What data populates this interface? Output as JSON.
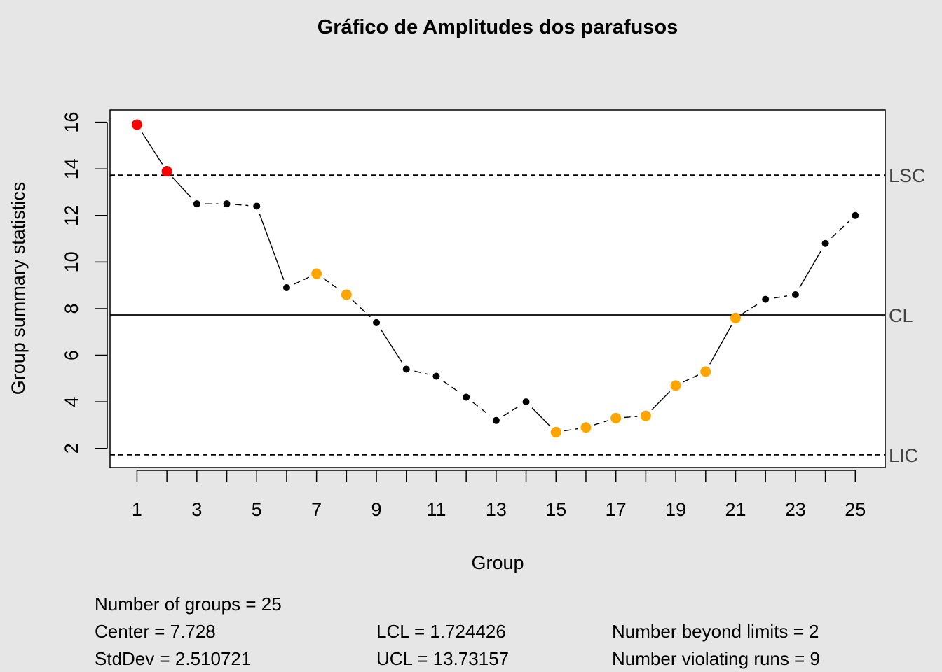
{
  "chart_data": {
    "type": "line",
    "title": "Gráfico de Amplitudes dos parafusos",
    "xlabel": "Group",
    "ylabel": "Group summary statistics",
    "x": [
      1,
      2,
      3,
      4,
      5,
      6,
      7,
      8,
      9,
      10,
      11,
      12,
      13,
      14,
      15,
      16,
      17,
      18,
      19,
      20,
      21,
      22,
      23,
      24,
      25
    ],
    "values": [
      15.9,
      13.9,
      12.5,
      12.5,
      12.4,
      8.9,
      9.5,
      8.6,
      7.4,
      5.4,
      5.1,
      4.2,
      3.2,
      4.0,
      2.7,
      2.9,
      3.3,
      3.4,
      4.7,
      5.3,
      7.6,
      8.4,
      8.6,
      10.8,
      12.0
    ],
    "point_status": [
      "beyond",
      "beyond",
      "normal",
      "normal",
      "normal",
      "normal",
      "run",
      "run",
      "normal",
      "normal",
      "normal",
      "normal",
      "normal",
      "normal",
      "run",
      "run",
      "run",
      "run",
      "run",
      "run",
      "run",
      "normal",
      "normal",
      "normal",
      "normal"
    ],
    "x_ticks": [
      1,
      3,
      5,
      7,
      9,
      11,
      13,
      15,
      17,
      19,
      21,
      23,
      25
    ],
    "y_ticks": [
      2,
      4,
      6,
      8,
      10,
      12,
      14,
      16
    ],
    "xlim": [
      0.1,
      26.0
    ],
    "ylim": [
      1.18,
      16.53
    ],
    "grid": false,
    "limits": [
      {
        "name": "LSC",
        "value": 13.73157,
        "style": "dashed"
      },
      {
        "name": "CL",
        "value": 7.728,
        "style": "solid"
      },
      {
        "name": "LIC",
        "value": 1.724426,
        "style": "dashed"
      }
    ]
  },
  "colors": {
    "normal": "#000000",
    "beyond": "#ff0000",
    "run": "#ffa500",
    "background": "#e6e6e6",
    "plot_background": "#ffffff",
    "limit_label": "#444444"
  },
  "stats": {
    "groups": "Number of groups = 25",
    "center": "Center = 7.728",
    "stddev": "StdDev = 2.510721",
    "lcl": "LCL = 1.724426",
    "ucl": "UCL = 13.73157",
    "beyond": "Number beyond limits = 2",
    "violating": "Number violating runs = 9"
  }
}
